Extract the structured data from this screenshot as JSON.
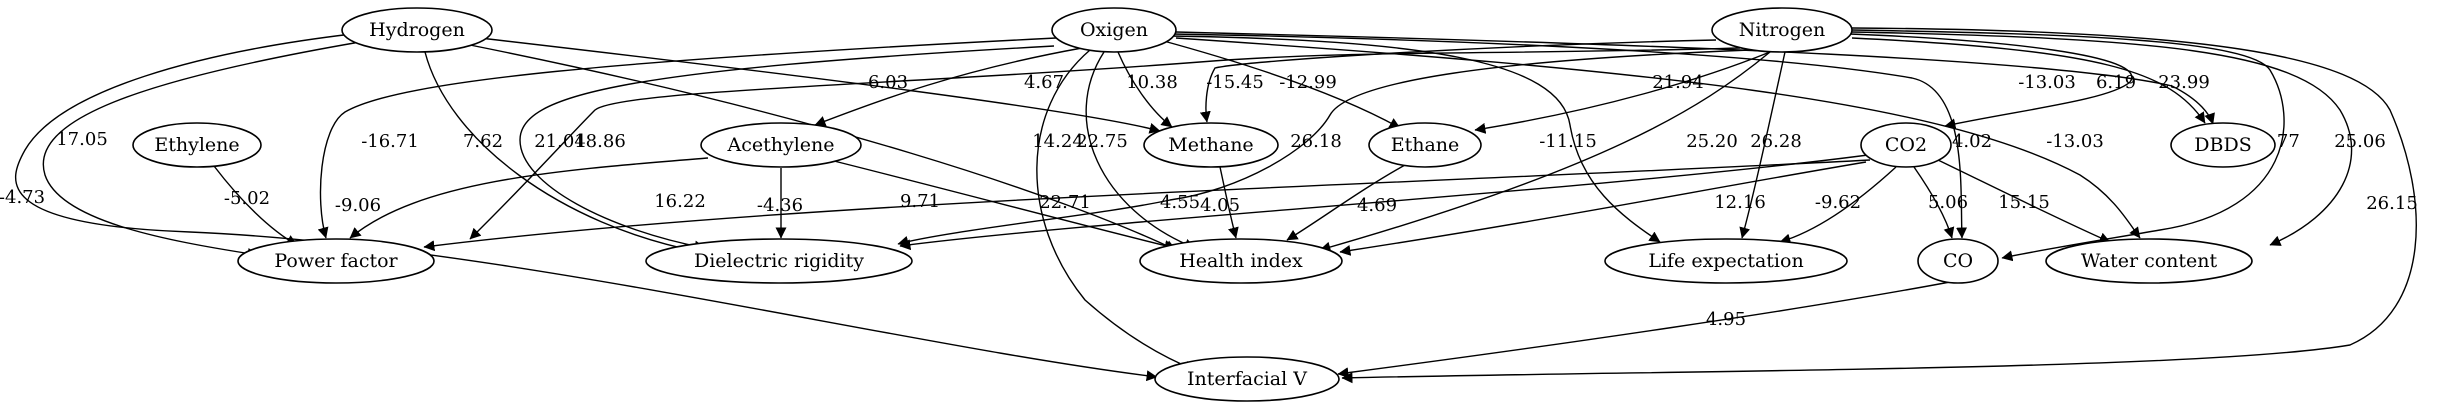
{
  "nodes": [
    {
      "id": "hydrogen",
      "label": "Hydrogen"
    },
    {
      "id": "oxigen",
      "label": "Oxigen"
    },
    {
      "id": "nitrogen",
      "label": "Nitrogen"
    },
    {
      "id": "ethylene",
      "label": "Ethylene"
    },
    {
      "id": "acethylene",
      "label": "Acethylene"
    },
    {
      "id": "methane",
      "label": "Methane"
    },
    {
      "id": "ethane",
      "label": "Ethane"
    },
    {
      "id": "co2",
      "label": "CO2"
    },
    {
      "id": "dbds",
      "label": "DBDS"
    },
    {
      "id": "power-factor",
      "label": "Power factor"
    },
    {
      "id": "dielectric-rigidity",
      "label": "Dielectric rigidity"
    },
    {
      "id": "health-index",
      "label": "Health index"
    },
    {
      "id": "life-expectation",
      "label": "Life expectation"
    },
    {
      "id": "co",
      "label": "CO"
    },
    {
      "id": "water-content",
      "label": "Water content"
    },
    {
      "id": "interfacial-v",
      "label": "Interfacial V"
    }
  ],
  "edges": [
    {
      "from": "hydrogen",
      "to": "interfacial-v",
      "label": "-4.73"
    },
    {
      "from": "hydrogen",
      "to": "power-factor",
      "label": "17.05"
    },
    {
      "from": "hydrogen",
      "to": "dielectric-rigidity",
      "label": "7.62"
    },
    {
      "from": "hydrogen",
      "to": "health-index",
      "label": "14.24"
    },
    {
      "from": "hydrogen",
      "to": "methane",
      "label": "4.67"
    },
    {
      "from": "ethylene",
      "to": "power-factor",
      "label": "-5.02"
    },
    {
      "from": "oxigen",
      "to": "power-factor",
      "label": "-16.71"
    },
    {
      "from": "oxigen",
      "to": "dielectric-rigidity",
      "label": "21.04"
    },
    {
      "from": "oxigen",
      "to": "acethylene",
      "label": "6.03"
    },
    {
      "from": "oxigen",
      "to": "interfacial-v",
      "label": "22.71"
    },
    {
      "from": "oxigen",
      "to": "health-index",
      "label": "22.75"
    },
    {
      "from": "oxigen",
      "to": "methane",
      "label": "10.38"
    },
    {
      "from": "oxigen",
      "to": "ethane",
      "label": "-12.99"
    },
    {
      "from": "oxigen",
      "to": "life-expectation",
      "label": "-11.15"
    },
    {
      "from": "oxigen",
      "to": "co",
      "label": "4.02"
    },
    {
      "from": "oxigen",
      "to": "water-content",
      "label": "-13.03"
    },
    {
      "from": "oxigen",
      "to": "dbds",
      "label": "-13.03"
    },
    {
      "from": "nitrogen",
      "to": "power-factor",
      "label": "18.86"
    },
    {
      "from": "nitrogen",
      "to": "methane",
      "label": "-15.45"
    },
    {
      "from": "nitrogen",
      "to": "ethane",
      "label": "21.94"
    },
    {
      "from": "nitrogen",
      "to": "dielectric-rigidity",
      "label": "26.18"
    },
    {
      "from": "nitrogen",
      "to": "health-index",
      "label": "25.20"
    },
    {
      "from": "nitrogen",
      "to": "life-expectation",
      "label": "26.28"
    },
    {
      "from": "nitrogen",
      "to": "co2",
      "label": "6.19"
    },
    {
      "from": "nitrogen",
      "to": "dbds",
      "label": "23.99"
    },
    {
      "from": "nitrogen",
      "to": "co",
      "label": "21.77"
    },
    {
      "from": "nitrogen",
      "to": "water-content",
      "label": "25.06"
    },
    {
      "from": "nitrogen",
      "to": "interfacial-v",
      "label": "26.15"
    },
    {
      "from": "acethylene",
      "to": "power-factor",
      "label": "-9.06"
    },
    {
      "from": "acethylene",
      "to": "dielectric-rigidity",
      "label": "-4.36"
    },
    {
      "from": "acethylene",
      "to": "health-index",
      "label": "9.71"
    },
    {
      "from": "methane",
      "to": "health-index",
      "label": "4.05"
    },
    {
      "from": "ethane",
      "to": "health-index",
      "label": "4.69"
    },
    {
      "from": "co2",
      "to": "power-factor",
      "label": "16.22"
    },
    {
      "from": "co2",
      "to": "dielectric-rigidity",
      "label": "4.55"
    },
    {
      "from": "co2",
      "to": "health-index",
      "label": "12.16"
    },
    {
      "from": "co2",
      "to": "life-expectation",
      "label": "-9.62"
    },
    {
      "from": "co2",
      "to": "co",
      "label": "5.06"
    },
    {
      "from": "co2",
      "to": "water-content",
      "label": "15.15"
    },
    {
      "from": "co",
      "to": "interfacial-v",
      "label": "4.95"
    }
  ]
}
